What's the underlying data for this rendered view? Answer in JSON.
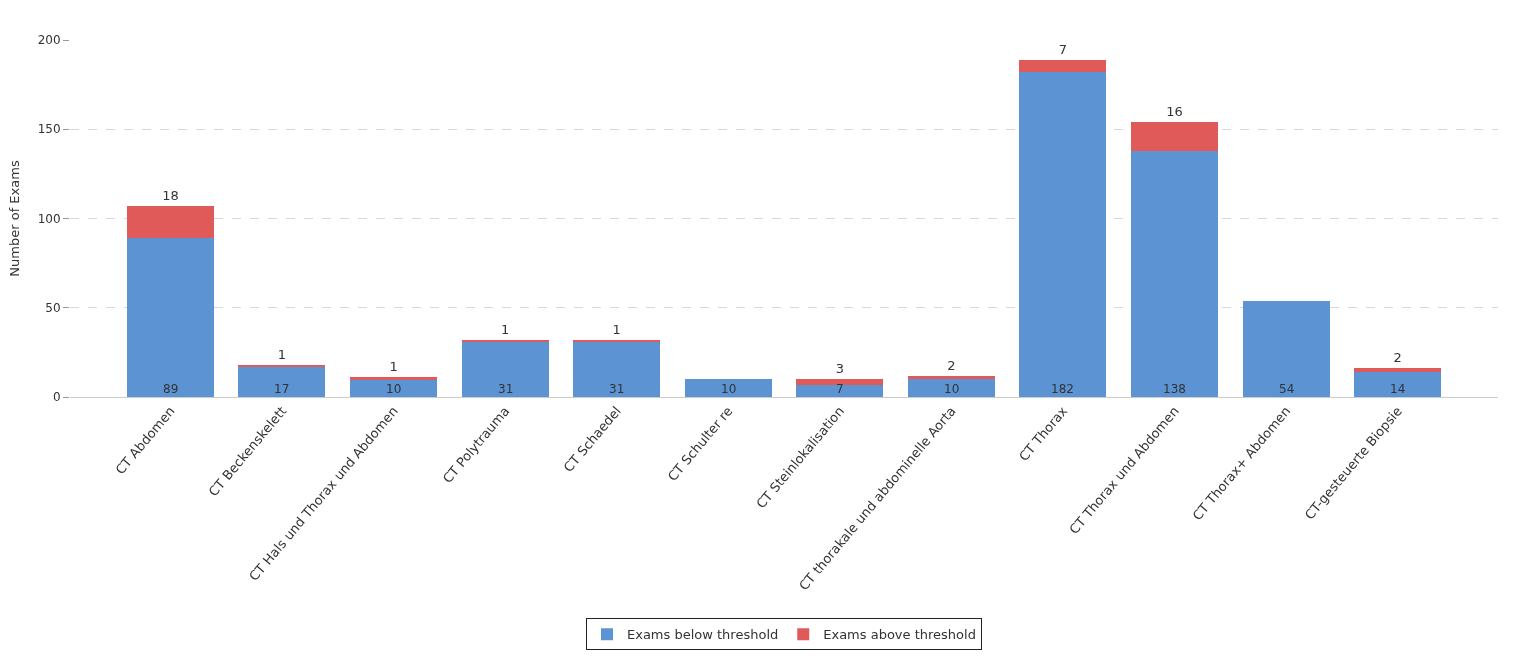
{
  "chart_data": {
    "type": "bar",
    "stacked": true,
    "ylabel": "Number of Exams",
    "categories": [
      "CT Abdomen",
      "CT Beckenskelett",
      "CT Hals und Thorax und Abdomen",
      "CT Polytrauma",
      "CT Schaedel",
      "CT Schulter re",
      "CT Steinlokalisation",
      "CT thorakale und abdominelle Aorta",
      "CT Thorax",
      "CT Thorax und Abdomen",
      "CT Thorax+ Abdomen",
      "CT-gesteuerte Biopsie"
    ],
    "series": [
      {
        "name": "Exams below threshold",
        "color": "#5b93d3",
        "values": [
          89,
          17,
          10,
          31,
          31,
          10,
          7,
          10,
          182,
          138,
          54,
          14
        ]
      },
      {
        "name": "Exams above threshold",
        "color": "#e05a5a",
        "values": [
          18,
          1,
          1,
          1,
          1,
          null,
          3,
          2,
          7,
          16,
          null,
          2
        ]
      }
    ],
    "ylim": [
      0,
      200
    ],
    "yticks": [
      0,
      50,
      100,
      150,
      200
    ],
    "grid": "y",
    "legend": "bottom",
    "data_labels": true
  }
}
